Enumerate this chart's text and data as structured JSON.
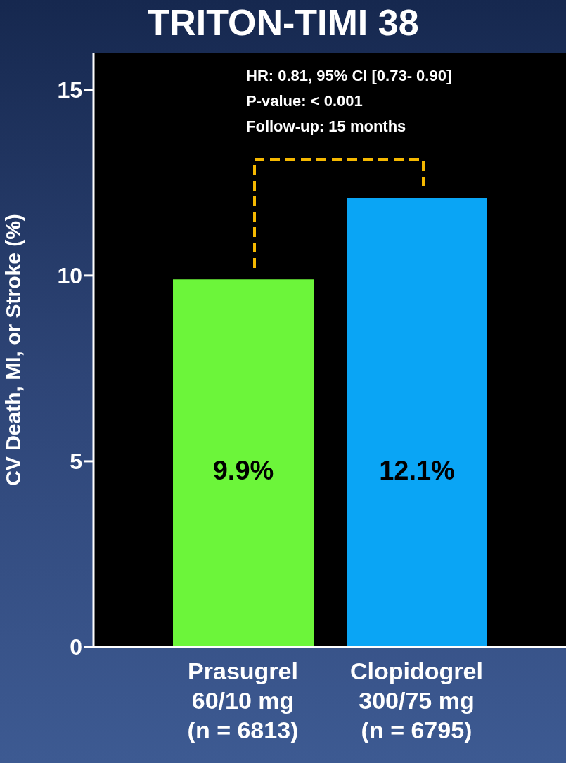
{
  "chart_data": {
    "type": "bar",
    "title": "TRITON-TIMI 38",
    "ylabel": "CV Death, MI, or Stroke (%)",
    "categories": [
      "Prasugrel\n60/10 mg\n(n = 6813)",
      "Clopidogrel\n300/75 mg\n(n = 6795)"
    ],
    "values": [
      9.9,
      12.1
    ],
    "colors": [
      "#6cf53a",
      "#0aa5f5"
    ],
    "value_labels": [
      "9.9%",
      "12.1%"
    ],
    "ylim": [
      0,
      16
    ],
    "yticks": [
      0,
      5,
      10,
      15
    ],
    "grid": false,
    "annotations": [
      "HR: 0.81, 95% CI [0.73- 0.90]",
      "P-value: < 0.001",
      "Follow-up: 15 months"
    ]
  }
}
